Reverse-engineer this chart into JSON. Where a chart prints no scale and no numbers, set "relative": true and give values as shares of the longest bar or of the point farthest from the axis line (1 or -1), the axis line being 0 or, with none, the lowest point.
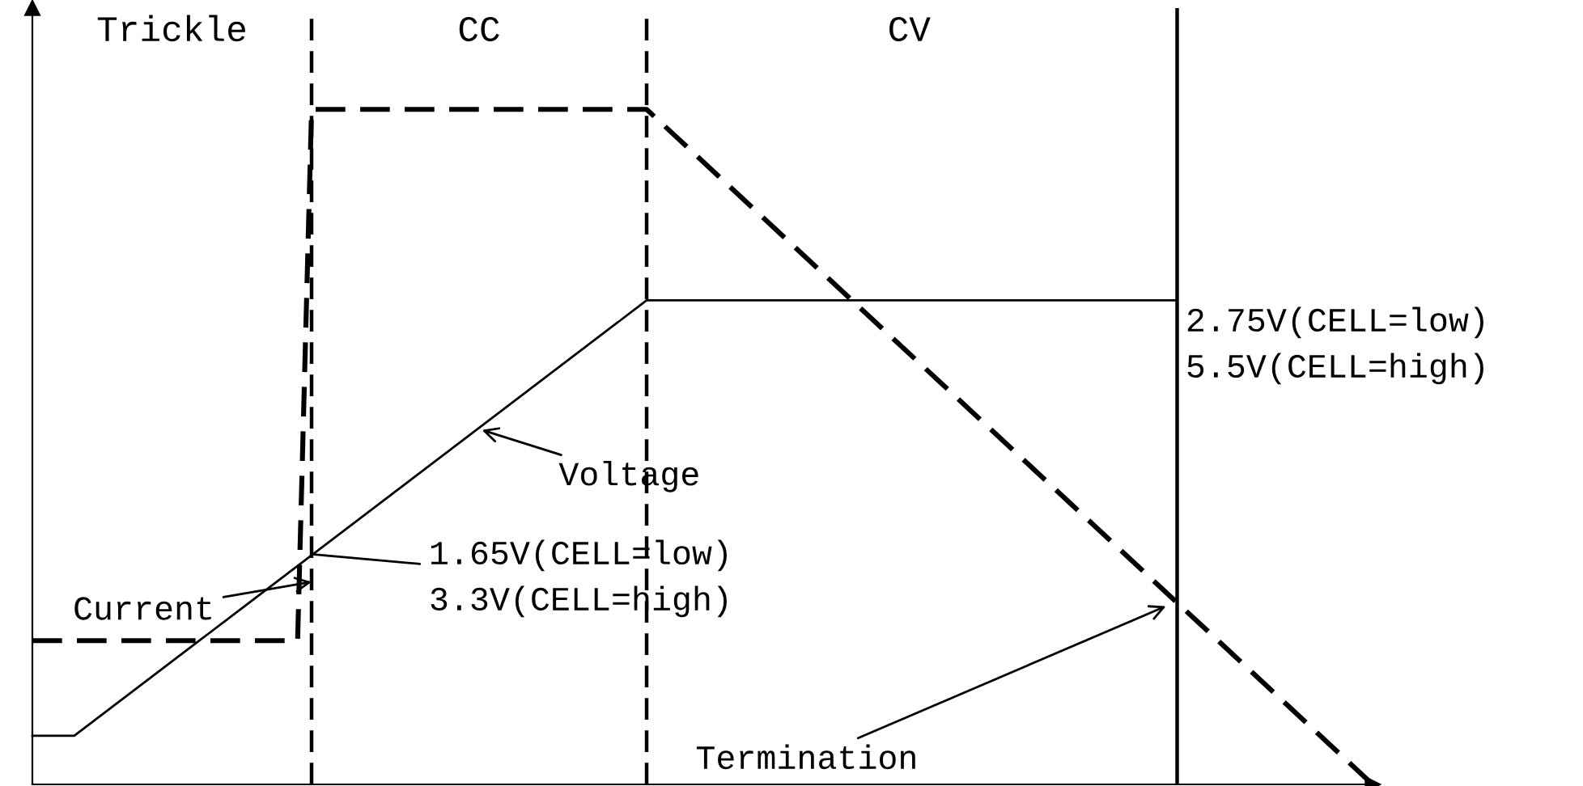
{
  "chart_data": {
    "type": "line",
    "relative": true,
    "categories": [
      null,
      null,
      null,
      null,
      null,
      null,
      null,
      null,
      null,
      null,
      null,
      null,
      null,
      null,
      null,
      null,
      null,
      null,
      null,
      null,
      null,
      null,
      null,
      null,
      null,
      null,
      null,
      null,
      null,
      null,
      null,
      null,
      null,
      null,
      null,
      null,
      null,
      null,
      null,
      null,
      null,
      null,
      null,
      null,
      null,
      null,
      null,
      null,
      null,
      null,
      null,
      null,
      null,
      null,
      null,
      null,
      null,
      null,
      null,
      null,
      null,
      null,
      null,
      null,
      null,
      null,
      null,
      null,
      null,
      null,
      null,
      null,
      null,
      null,
      null,
      null,
      null,
      null,
      null,
      null,
      null,
      null,
      null,
      null,
      null,
      null,
      null,
      null,
      null,
      null,
      null,
      null,
      null,
      null,
      null,
      null,
      null
    ],
    "series": [
      {
        "color": "#000000",
        "line_style": "solid",
        "values": [
          0.072,
          null,
          null,
          0.072,
          null,
          null,
          null,
          null,
          null,
          null,
          null,
          null,
          null,
          null,
          null,
          null,
          null,
          null,
          null,
          null,
          null,
          null,
          null,
          null,
          null,
          null,
          null,
          null,
          null,
          null,
          null,
          null,
          null,
          null,
          null,
          null,
          null,
          null,
          null,
          null,
          null,
          null,
          null,
          null,
          0.717,
          null,
          null,
          null,
          null,
          null,
          null,
          null,
          null,
          null,
          null,
          null,
          null,
          null,
          null,
          null,
          null,
          null,
          null,
          null,
          null,
          null,
          null,
          null,
          null,
          null,
          null,
          null,
          null,
          null,
          null,
          null,
          null,
          null,
          null,
          null,
          null,
          null,
          0.717,
          null,
          null,
          null,
          null,
          null,
          null,
          null,
          null,
          null,
          null,
          null,
          null,
          null,
          null
        ]
      },
      {
        "color": "#000000",
        "line_style": "dashed",
        "values": [
          0.213,
          null,
          null,
          null,
          null,
          null,
          null,
          null,
          null,
          null,
          null,
          null,
          null,
          null,
          null,
          null,
          null,
          null,
          null,
          0.213,
          1.0,
          null,
          null,
          null,
          null,
          null,
          null,
          null,
          null,
          null,
          null,
          null,
          null,
          null,
          null,
          null,
          null,
          null,
          null,
          null,
          null,
          null,
          null,
          null,
          1.0,
          null,
          null,
          null,
          null,
          null,
          null,
          null,
          null,
          null,
          null,
          null,
          null,
          null,
          null,
          null,
          null,
          null,
          null,
          null,
          null,
          null,
          null,
          null,
          null,
          null,
          null,
          null,
          null,
          null,
          null,
          null,
          null,
          null,
          null,
          null,
          null,
          null,
          null,
          null,
          null,
          null,
          null,
          null,
          null,
          null,
          null,
          null,
          null,
          null,
          null,
          null,
          0.0
        ]
      }
    ],
    "annotations": [
      "Trickle",
      "CC",
      "CV",
      "Current",
      "Voltage",
      "1.65V(CELL=low)\n3.3V(CELL=high)",
      "2.75V(CELL=low)\n5.5V(CELL=high)",
      "Termination"
    ]
  }
}
